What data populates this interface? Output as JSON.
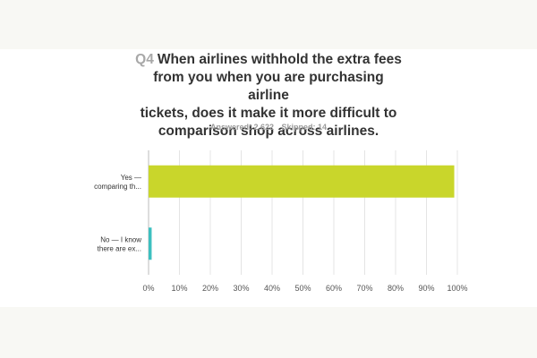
{
  "question": {
    "number": "Q4",
    "text_lines": [
      "When airlines withhold the extra fees",
      "from you when you are purchasing airline",
      "tickets, does it make it more difficult to",
      "comparison shop across airlines."
    ]
  },
  "stats": {
    "answered": "Answered: 2,622",
    "skipped": "Skipped: 14"
  },
  "chart_data": {
    "type": "bar",
    "orientation": "horizontal",
    "categories": [
      [
        "Yes —",
        "comparing th..."
      ],
      [
        "No — I know",
        "there are ex..."
      ]
    ],
    "values": [
      99,
      1
    ],
    "colors": [
      "#c9d62b",
      "#3cc0c0"
    ],
    "xlim": [
      0,
      100
    ],
    "xticks": [
      "0%",
      "10%",
      "20%",
      "30%",
      "40%",
      "50%",
      "60%",
      "70%",
      "80%",
      "90%",
      "100%"
    ],
    "grid": true
  }
}
